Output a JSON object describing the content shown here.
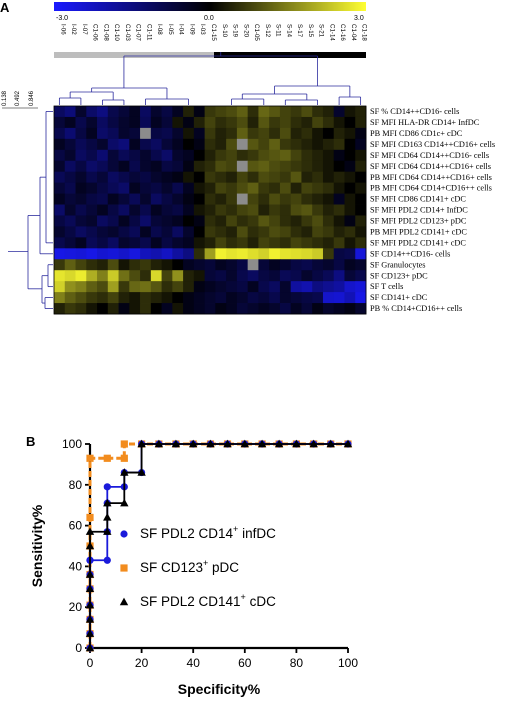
{
  "panel_a": {
    "label": "A",
    "colorbar": {
      "min_label": "-3.0",
      "mid_label": "0.0",
      "max_label": "3.0",
      "low_color": "#1a1aff",
      "mid_color": "#000000",
      "high_color": "#ffff33"
    },
    "scale_ticks": [
      "0.138",
      "0.492",
      "0.846"
    ],
    "columns": [
      "I-06",
      "I-02",
      "I-07",
      "C1-06",
      "C1-08",
      "C1-10",
      "C1-03",
      "C1-07",
      "C1-11",
      "I-08",
      "I-05",
      "I-04",
      "I-09",
      "I-03",
      "C1-15",
      "S-10",
      "S-19",
      "S-20",
      "C1-05",
      "S-12",
      "S-11",
      "S-14",
      "S-17",
      "S-15",
      "S-21",
      "C1-14",
      "C1-16",
      "C1-04",
      "C1-18"
    ],
    "group_bar": {
      "left_color": "#bdbdbd",
      "right_color": "#000000"
    },
    "rows": [
      "SF % CD14++CD16- cells",
      "SF MFI HLA-DR CD14+ InfDC",
      "PB MFI CD86 CD1c+ cDC",
      "SF MFI CD163 CD14++CD16+ cells",
      "SF MFI CD64 CD14++CD16- cells",
      "SF MFI CD64 CD14++CD16+ cells",
      "PB MFI CD64 CD14++CD16+ cells",
      "PB MFI CD64  CD14+CD16++ cells",
      "SF MFI CD86 CD141+ cDC",
      "SF MFI PDL2 CD14+ InfDC",
      "SF MFI PDL2 CD123+ pDC",
      "PB MFI PDL2 CD141+ cDC",
      "SF MFI PDL2 CD141+ cDC",
      "SF CD14++CD16- cells",
      "SF Granulocytes",
      "SF CD123+ pDC",
      "SF T cells",
      "SF CD141+ cDC",
      "PB % CD14+CD16++ cells"
    ],
    "heatmap_values": [
      [
        -0.8,
        -1.1,
        -0.3,
        -0.9,
        -1.2,
        -0.6,
        -0.4,
        -0.2,
        -0.8,
        -0.3,
        -0.5,
        -0.2,
        0.2,
        -0.1,
        0.4,
        0.5,
        0.6,
        0.8,
        0.3,
        0.9,
        0.7,
        0.5,
        0.4,
        0.6,
        0.3,
        0.2,
        -0.3,
        0.1,
        0.2
      ],
      [
        -0.4,
        -0.2,
        -0.6,
        -0.3,
        -0.8,
        -0.5,
        -0.3,
        -0.2,
        -0.7,
        -0.2,
        -0.4,
        0.1,
        -0.1,
        0.2,
        0.5,
        0.3,
        0.4,
        0.6,
        0.2,
        0.7,
        0.4,
        0.5,
        0.3,
        0.2,
        0.5,
        0.3,
        0.1,
        0.0,
        0.2
      ],
      [
        -0.6,
        -1.0,
        -0.5,
        -0.2,
        -0.9,
        -0.7,
        -0.3,
        -0.4,
        "x",
        -0.5,
        -0.6,
        -0.3,
        0.1,
        -0.2,
        0.4,
        0.2,
        0.3,
        0.8,
        0.4,
        0.5,
        0.3,
        0.6,
        0.2,
        0.3,
        0.1,
        0.0,
        0.2,
        0.1,
        -0.1
      ],
      [
        -0.2,
        -0.4,
        -0.7,
        -0.5,
        -0.3,
        -0.9,
        -1.1,
        -0.2,
        -0.6,
        -0.8,
        -0.4,
        -0.2,
        0.0,
        -0.1,
        0.3,
        0.2,
        0.6,
        "x",
        0.7,
        0.5,
        0.8,
        0.4,
        0.3,
        0.2,
        0.1,
        0.2,
        0.3,
        0.0,
        -0.2
      ],
      [
        -0.5,
        -0.3,
        -0.8,
        -0.6,
        -1.0,
        -0.4,
        -0.7,
        -0.5,
        -0.3,
        -0.6,
        -0.9,
        -0.3,
        -0.2,
        0.0,
        0.2,
        0.4,
        0.5,
        0.3,
        0.4,
        0.6,
        0.7,
        0.8,
        0.5,
        0.3,
        0.2,
        0.1,
        -0.1,
        0.0,
        0.1
      ],
      [
        -0.3,
        -0.8,
        -0.5,
        -0.9,
        -0.7,
        -0.4,
        -0.2,
        -0.6,
        -0.3,
        -0.2,
        -0.5,
        -0.4,
        -0.1,
        0.2,
        0.3,
        0.6,
        0.5,
        "x",
        0.7,
        0.8,
        0.6,
        0.5,
        0.4,
        0.3,
        0.2,
        0.1,
        0.0,
        -0.1,
        0.2
      ],
      [
        -0.7,
        -0.5,
        -0.3,
        -0.6,
        -0.4,
        -0.8,
        -0.6,
        -0.4,
        -0.5,
        -0.3,
        -0.2,
        -0.1,
        0.1,
        0.0,
        0.4,
        0.3,
        0.2,
        0.5,
        0.3,
        0.6,
        0.5,
        0.4,
        0.7,
        0.2,
        0.3,
        0.1,
        0.2,
        0.1,
        0.0
      ],
      [
        -0.4,
        -0.6,
        -0.2,
        -0.3,
        -0.5,
        -0.7,
        -0.9,
        -0.2,
        -0.4,
        -0.5,
        -0.3,
        -0.6,
        -0.2,
        0.1,
        0.2,
        0.5,
        0.4,
        0.6,
        0.8,
        0.4,
        0.3,
        0.6,
        0.2,
        0.5,
        0.4,
        0.3,
        0.1,
        0.0,
        0.1
      ],
      [
        -0.2,
        -0.4,
        -0.3,
        -0.5,
        -0.6,
        -0.2,
        -0.4,
        -0.7,
        -0.3,
        -0.8,
        -0.5,
        -0.3,
        -0.1,
        0.0,
        0.3,
        0.2,
        0.4,
        "x",
        0.5,
        0.3,
        0.6,
        0.4,
        0.5,
        0.3,
        0.2,
        0.1,
        -0.2,
        0.1,
        0.0
      ],
      [
        -0.9,
        -0.3,
        -0.6,
        -0.4,
        -0.2,
        -0.5,
        -0.8,
        -0.3,
        -0.6,
        -0.2,
        -0.4,
        -0.5,
        -0.2,
        0.1,
        0.2,
        0.4,
        0.3,
        0.5,
        0.6,
        0.2,
        0.4,
        0.3,
        0.6,
        0.7,
        0.4,
        0.2,
        0.3,
        0.1,
        0.0
      ],
      [
        -0.5,
        -0.7,
        -0.4,
        -0.3,
        -0.8,
        -0.6,
        -0.2,
        -0.5,
        -0.9,
        -0.4,
        -0.3,
        -0.2,
        0.0,
        -0.1,
        0.3,
        0.2,
        0.5,
        0.3,
        0.4,
        0.7,
        0.5,
        0.3,
        0.2,
        0.4,
        0.6,
        0.3,
        0.1,
        -0.1,
        0.2
      ],
      [
        -0.3,
        -0.5,
        -0.8,
        -0.6,
        -0.4,
        -0.3,
        -0.5,
        -0.7,
        -0.2,
        -0.6,
        -0.4,
        -0.8,
        -0.3,
        0.0,
        0.4,
        0.3,
        0.2,
        0.6,
        0.3,
        0.4,
        0.6,
        0.5,
        0.3,
        0.2,
        0.5,
        0.4,
        0.2,
        0.3,
        0.1
      ],
      [
        -0.6,
        -0.4,
        -0.2,
        -0.7,
        -0.5,
        -0.8,
        -0.3,
        -0.4,
        -0.6,
        -0.2,
        -0.5,
        -0.3,
        -0.2,
        0.1,
        0.2,
        0.5,
        0.3,
        0.4,
        0.2,
        0.5,
        0.4,
        0.3,
        0.5,
        0.4,
        0.3,
        0.2,
        0.4,
        0.1,
        0.3
      ],
      [
        -2.6,
        -2.5,
        -2.4,
        -2.6,
        -2.3,
        -2.4,
        -2.2,
        -2.5,
        -2.0,
        -1.8,
        -2.1,
        -1.6,
        -1.2,
        0.3,
        1.6,
        2.8,
        2.6,
        2.7,
        2.5,
        2.3,
        2.8,
        2.6,
        2.5,
        2.4,
        2.2,
        0.4,
        -0.5,
        -0.6,
        -2.4
      ],
      [
        0.4,
        0.8,
        0.5,
        0.3,
        0.2,
        0.6,
        0.1,
        0.3,
        0.4,
        0.2,
        0.1,
        0.0,
        -0.2,
        -0.3,
        -0.4,
        -0.2,
        -0.3,
        -0.5,
        "x",
        -0.4,
        -0.2,
        -0.3,
        -0.5,
        -0.6,
        -0.4,
        -0.3,
        -0.5,
        -0.2,
        -0.3
      ],
      [
        2.6,
        2.4,
        2.7,
        1.8,
        1.2,
        2.2,
        1.0,
        0.6,
        0.3,
        2.4,
        0.5,
        1.4,
        0.2,
        0.1,
        -0.4,
        -0.5,
        -0.3,
        -0.6,
        -0.8,
        -0.5,
        -0.4,
        -0.7,
        -0.6,
        -0.3,
        -0.5,
        -0.7,
        -1.2,
        -0.4,
        -0.6
      ],
      [
        2.3,
        1.4,
        1.2,
        0.8,
        0.6,
        1.6,
        0.4,
        0.9,
        1.0,
        0.7,
        0.3,
        0.5,
        0.2,
        -0.1,
        -0.2,
        -0.3,
        -0.4,
        -0.5,
        -0.2,
        -0.6,
        -0.8,
        -0.3,
        -1.6,
        -1.8,
        -1.2,
        -1.4,
        -1.6,
        -2.2,
        -2.4
      ],
      [
        1.2,
        0.8,
        0.6,
        0.4,
        0.3,
        0.5,
        0.2,
        0.1,
        0.3,
        0.2,
        0.1,
        0.0,
        -0.1,
        -0.2,
        -0.3,
        -0.4,
        -0.2,
        -0.3,
        -0.5,
        -0.4,
        -0.6,
        -0.3,
        -0.4,
        -0.5,
        -0.6,
        -2.2,
        -2.3,
        -1.9,
        -2.6
      ],
      [
        0.2,
        0.4,
        0.3,
        0.1,
        0.0,
        0.2,
        -0.1,
        0.1,
        0.3,
        0.0,
        -0.2,
        0.1,
        -0.1,
        -0.2,
        -0.3,
        -0.1,
        -0.2,
        -0.4,
        -0.3,
        -0.2,
        -0.3,
        -0.5,
        -0.2,
        -0.4,
        -0.1,
        -0.3,
        -0.2,
        -0.1,
        -0.3
      ]
    ],
    "missing_color": "#8c8c8c",
    "dendrogram_color": "#2b2b9e"
  },
  "panel_b": {
    "label": "B"
  },
  "chart_data": {
    "type": "line",
    "xlabel": "Specificity%",
    "ylabel": "Sensitivity%",
    "xlim": [
      0,
      100
    ],
    "ylim": [
      0,
      100
    ],
    "x_ticks": [
      "0",
      "20",
      "40",
      "60",
      "80",
      "100"
    ],
    "y_ticks": [
      "0",
      "20",
      "40",
      "60",
      "80",
      "100"
    ],
    "series": [
      {
        "name": "SF PDL2 CD14+ infDC",
        "label_main": "SF PDL2 CD14",
        "label_sup": "+",
        "label_tail": " infDC",
        "color": "#1a1adb",
        "marker": "circle",
        "x": [
          0,
          0,
          0,
          0,
          0,
          0,
          0,
          0,
          6.7,
          6.7,
          6.7,
          6.7,
          13.3,
          13.3,
          20,
          20,
          26.7,
          33.3,
          40,
          46.7,
          53.3,
          60,
          66.7,
          73.3,
          80,
          86.7,
          93.3,
          100
        ],
        "y": [
          0,
          7,
          14,
          21,
          29,
          36,
          43,
          43,
          43,
          57,
          71,
          79,
          79,
          86,
          86,
          100,
          100,
          100,
          100,
          100,
          100,
          100,
          100,
          100,
          100,
          100,
          100,
          100
        ]
      },
      {
        "name": "SF CD123+ pDC",
        "label_main": "SF CD123",
        "label_sup": "+",
        "label_tail": " pDC",
        "color": "#f28c1e",
        "marker": "square",
        "x": [
          0,
          0,
          0,
          0,
          0,
          0,
          0,
          0,
          0,
          6.7,
          13.3,
          13.3,
          20,
          26.7,
          33.3,
          40,
          46.7,
          53.3,
          60,
          66.7,
          73.3,
          80,
          86.7,
          93.3,
          100
        ],
        "y": [
          0,
          7,
          14,
          21,
          29,
          36,
          50,
          64,
          93,
          93,
          93,
          100,
          100,
          100,
          100,
          100,
          100,
          100,
          100,
          100,
          100,
          100,
          100,
          100,
          100
        ]
      },
      {
        "name": "SF PDL2 CD141+ cDC",
        "label_main": "SF PDL2 CD141",
        "label_sup": "+",
        "label_tail": " cDC",
        "color": "#000000",
        "marker": "triangle",
        "x": [
          0,
          0,
          0,
          0,
          0,
          0,
          0,
          0,
          6.7,
          6.7,
          6.7,
          13.3,
          13.3,
          20,
          20,
          26.7,
          33.3,
          40,
          46.7,
          53.3,
          60,
          66.7,
          73.3,
          80,
          86.7,
          93.3,
          100
        ],
        "y": [
          0,
          7,
          14,
          21,
          29,
          36,
          50,
          57,
          57,
          64,
          71,
          71,
          86,
          86,
          100,
          100,
          100,
          100,
          100,
          100,
          100,
          100,
          100,
          100,
          100,
          100,
          100
        ]
      }
    ]
  }
}
